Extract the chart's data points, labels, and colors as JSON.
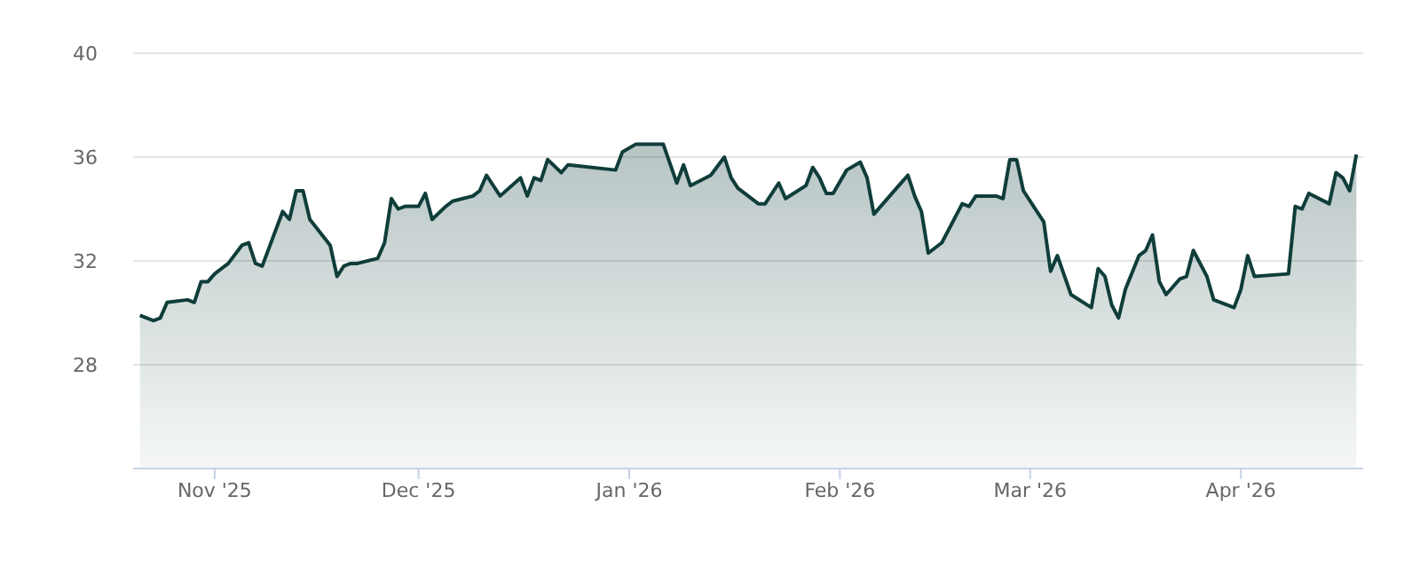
{
  "chart_data": {
    "type": "area",
    "x": [
      "2025-10-21",
      "2025-10-23",
      "2025-10-24",
      "2025-10-25",
      "2025-10-28",
      "2025-10-29",
      "2025-10-30",
      "2025-10-31",
      "2025-11-01",
      "2025-11-03",
      "2025-11-05",
      "2025-11-06",
      "2025-11-07",
      "2025-11-08",
      "2025-11-11",
      "2025-11-12",
      "2025-11-13",
      "2025-11-14",
      "2025-11-15",
      "2025-11-18",
      "2025-11-19",
      "2025-11-20",
      "2025-11-21",
      "2025-11-22",
      "2025-11-25",
      "2025-11-26",
      "2025-11-27",
      "2025-11-28",
      "2025-11-29",
      "2025-12-01",
      "2025-12-02",
      "2025-12-03",
      "2025-12-05",
      "2025-12-06",
      "2025-12-09",
      "2025-12-10",
      "2025-12-11",
      "2025-12-13",
      "2025-12-16",
      "2025-12-17",
      "2025-12-18",
      "2025-12-19",
      "2025-12-20",
      "2025-12-22",
      "2025-12-23",
      "2025-12-30",
      "2025-12-31",
      "2026-01-02",
      "2026-01-06",
      "2026-01-08",
      "2026-01-09",
      "2026-01-10",
      "2026-01-13",
      "2026-01-15",
      "2026-01-16",
      "2026-01-17",
      "2026-01-20",
      "2026-01-21",
      "2026-01-23",
      "2026-01-24",
      "2026-01-27",
      "2026-01-28",
      "2026-01-29",
      "2026-01-30",
      "2026-01-31",
      "2026-02-02",
      "2026-02-04",
      "2026-02-05",
      "2026-02-06",
      "2026-02-11",
      "2026-02-12",
      "2026-02-13",
      "2026-02-14",
      "2026-02-16",
      "2026-02-19",
      "2026-02-20",
      "2026-02-21",
      "2026-02-24",
      "2026-02-25",
      "2026-02-26",
      "2026-02-27",
      "2026-02-28",
      "2026-03-03",
      "2026-03-04",
      "2026-03-05",
      "2026-03-07",
      "2026-03-10",
      "2026-03-11",
      "2026-03-12",
      "2026-03-13",
      "2026-03-14",
      "2026-03-15",
      "2026-03-17",
      "2026-03-18",
      "2026-03-19",
      "2026-03-20",
      "2026-03-21",
      "2026-03-23",
      "2026-03-24",
      "2026-03-25",
      "2026-03-27",
      "2026-03-28",
      "2026-03-31",
      "2026-04-01",
      "2026-04-02",
      "2026-04-03",
      "2026-04-08",
      "2026-04-09",
      "2026-04-10",
      "2026-04-11",
      "2026-04-14",
      "2026-04-15",
      "2026-04-16",
      "2026-04-17",
      "2026-04-18"
    ],
    "series": [
      {
        "color": "#0f3d3a",
        "values": [
          29.9,
          29.7,
          29.8,
          30.4,
          30.5,
          30.4,
          31.2,
          31.2,
          31.5,
          31.9,
          32.6,
          32.7,
          31.9,
          31.8,
          33.9,
          33.6,
          34.7,
          34.7,
          33.6,
          32.6,
          31.4,
          31.8,
          31.9,
          31.9,
          32.1,
          32.7,
          34.4,
          34.0,
          34.1,
          34.1,
          34.6,
          33.6,
          34.1,
          34.3,
          34.5,
          34.7,
          35.3,
          34.5,
          35.2,
          34.5,
          35.2,
          35.1,
          35.9,
          35.4,
          35.7,
          35.5,
          36.2,
          36.5,
          36.5,
          35.0,
          35.7,
          34.9,
          35.3,
          36.0,
          35.2,
          34.8,
          34.2,
          34.2,
          35.0,
          34.4,
          34.9,
          35.6,
          35.2,
          34.6,
          34.6,
          35.5,
          35.8,
          35.2,
          33.8,
          35.3,
          34.5,
          33.9,
          32.3,
          32.7,
          34.2,
          34.1,
          34.5,
          34.5,
          34.4,
          35.9,
          35.9,
          34.7,
          33.5,
          31.6,
          32.2,
          30.7,
          30.2,
          31.7,
          31.4,
          30.3,
          29.8,
          30.9,
          32.2,
          32.4,
          33.0,
          31.2,
          30.7,
          31.3,
          31.4,
          32.4,
          31.4,
          30.5,
          30.2,
          30.9,
          32.2,
          31.4,
          31.5,
          34.1,
          34.0,
          34.6,
          34.2,
          35.4,
          35.2,
          34.7,
          36.1
        ]
      }
    ],
    "xlim": [
      "2025-10-20",
      "2026-04-19"
    ],
    "xticks": [
      {
        "value": "2025-11-01",
        "label": "Nov '25"
      },
      {
        "value": "2025-12-01",
        "label": "Dec '25"
      },
      {
        "value": "2026-01-01",
        "label": "Jan '26"
      },
      {
        "value": "2026-02-01",
        "label": "Feb '26"
      },
      {
        "value": "2026-03-01",
        "label": "Mar '26"
      },
      {
        "value": "2026-04-01",
        "label": "Apr '26"
      }
    ],
    "ylim": [
      24,
      40
    ],
    "yticks": [
      28,
      32,
      36,
      40
    ],
    "grid": "y",
    "marker": "none",
    "line_style": "solid"
  }
}
